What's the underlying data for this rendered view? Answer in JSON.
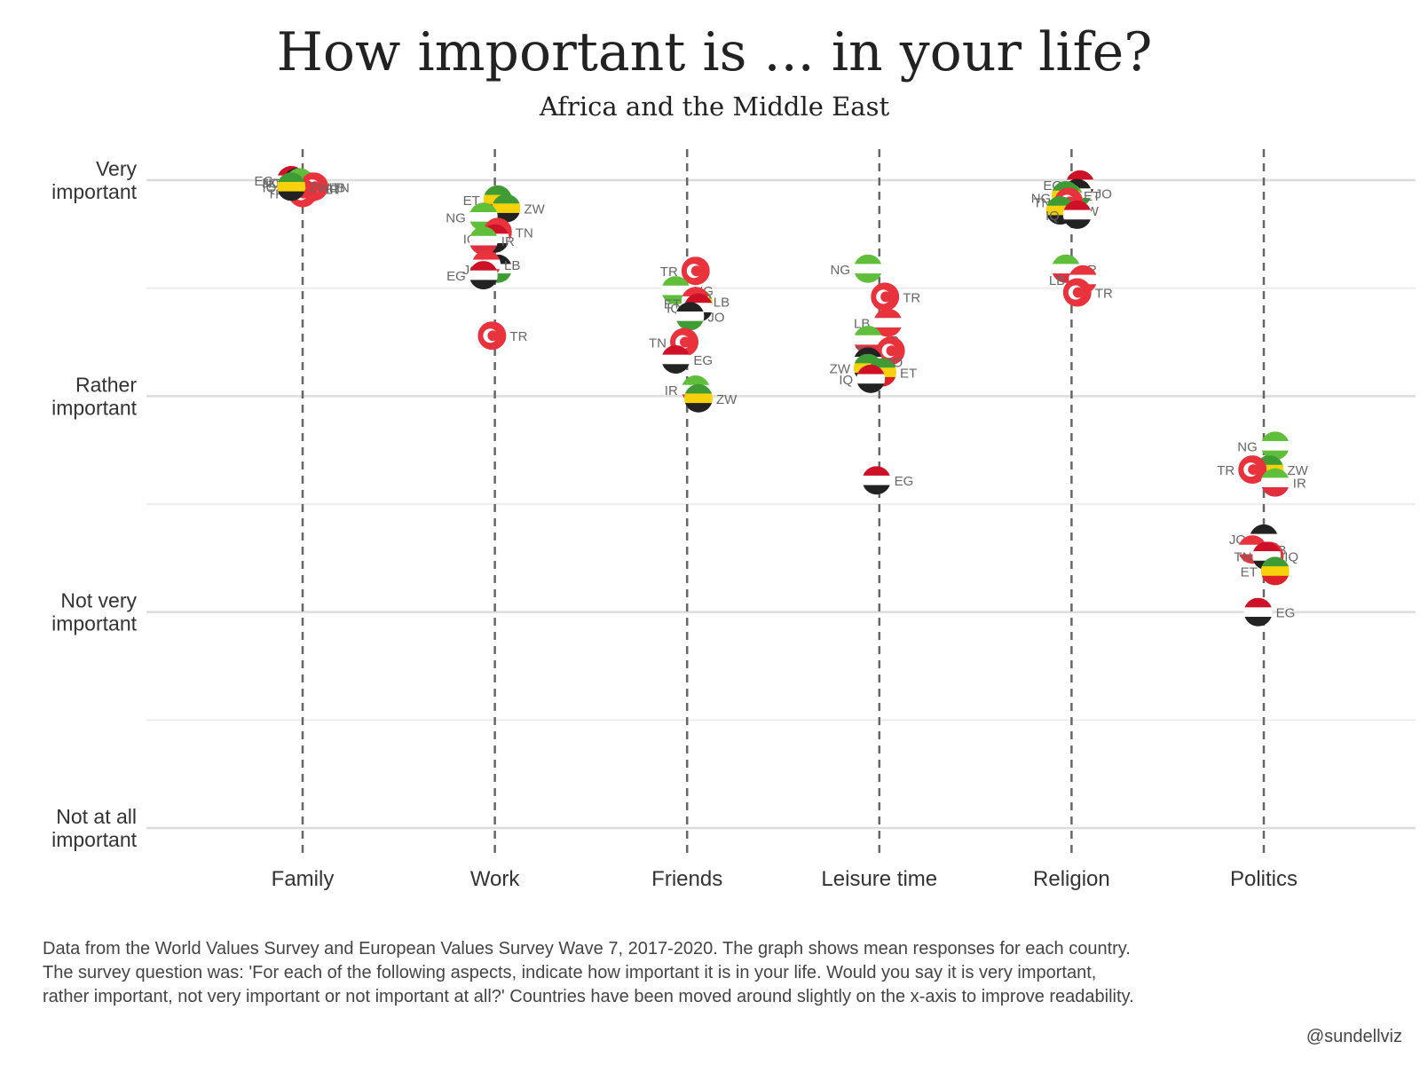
{
  "header": {
    "title": "How important is ... in your life?",
    "subtitle": "Africa and the Middle East"
  },
  "footer": {
    "caption_lines": [
      "Data from the World Values Survey and European Values Survey Wave 7, 2017-2020. The graph shows mean responses for each country.",
      "The survey question was: 'For each of the following aspects, indicate how important it is in your life. Would you say it is very important,",
      "rather important, not very important or not important at all?' Countries have been moved around slightly on the x-axis to improve readability."
    ],
    "credit": "@sundellviz"
  },
  "chart_data": {
    "type": "scatter",
    "title": "How important is ... in your life?",
    "subtitle": "Africa and the Middle East",
    "categories": [
      "Family",
      "Work",
      "Friends",
      "Leisure time",
      "Religion",
      "Politics"
    ],
    "y_ticks": [
      {
        "value": 1,
        "label": "Very important"
      },
      {
        "value": 2,
        "label": "Rather important"
      },
      {
        "value": 3,
        "label": "Not very important"
      },
      {
        "value": 4,
        "label": "Not at all important"
      }
    ],
    "ylim": [
      1,
      4
    ],
    "y_inverted": true,
    "grid": true,
    "country_codes": [
      "EG",
      "ET",
      "IQ",
      "IR",
      "JO",
      "LB",
      "NG",
      "TN",
      "TR",
      "ZW"
    ],
    "country_colors": {
      "EG": [
        "#ce1126",
        "#ffffff",
        "#222222"
      ],
      "ET": [
        "#3f9c35",
        "#f5d20b",
        "#da2128"
      ],
      "IQ": [
        "#ce1126",
        "#ffffff",
        "#222222"
      ],
      "IR": [
        "#5fbf3a",
        "#ffffff",
        "#e03040"
      ],
      "JO": [
        "#222222",
        "#ffffff",
        "#3f9c35"
      ],
      "LB": [
        "#e8333d",
        "#ffffff",
        "#e8333d"
      ],
      "NG": [
        "#5fbf3a",
        "#ffffff",
        "#5fbf3a"
      ],
      "TN": [
        "#e8333d",
        "#e8333d",
        "#e8333d"
      ],
      "TR": [
        "#e8333d",
        "#e8333d",
        "#e8333d"
      ],
      "ZW": [
        "#3f9c35",
        "#f5d20b",
        "#222222"
      ]
    },
    "points": [
      {
        "category": "Family",
        "country": "EG",
        "value": 1.0
      },
      {
        "category": "Family",
        "country": "ET",
        "value": 1.04
      },
      {
        "category": "Family",
        "country": "IQ",
        "value": 1.03
      },
      {
        "category": "Family",
        "country": "IR",
        "value": 1.04
      },
      {
        "category": "Family",
        "country": "JO",
        "value": 1.01
      },
      {
        "category": "Family",
        "country": "LB",
        "value": 1.03
      },
      {
        "category": "Family",
        "country": "NG",
        "value": 1.01
      },
      {
        "category": "Family",
        "country": "TN",
        "value": 1.03
      },
      {
        "category": "Family",
        "country": "TR",
        "value": 1.06
      },
      {
        "category": "Family",
        "country": "ZW",
        "value": 1.03
      },
      {
        "category": "Work",
        "country": "ET",
        "value": 1.09
      },
      {
        "category": "Work",
        "country": "ZW",
        "value": 1.13
      },
      {
        "category": "Work",
        "country": "NG",
        "value": 1.17
      },
      {
        "category": "Work",
        "country": "TN",
        "value": 1.24
      },
      {
        "category": "Work",
        "country": "IQ",
        "value": 1.27
      },
      {
        "category": "Work",
        "country": "IR",
        "value": 1.28
      },
      {
        "category": "Work",
        "country": "JO",
        "value": 1.41
      },
      {
        "category": "Work",
        "country": "LB",
        "value": 1.39
      },
      {
        "category": "Work",
        "country": "EG",
        "value": 1.44
      },
      {
        "category": "Work",
        "country": "TR",
        "value": 1.72
      },
      {
        "category": "Friends",
        "country": "TR",
        "value": 1.42
      },
      {
        "category": "Friends",
        "country": "NG",
        "value": 1.51
      },
      {
        "category": "Friends",
        "country": "ET",
        "value": 1.57
      },
      {
        "category": "Friends",
        "country": "LB",
        "value": 1.56
      },
      {
        "category": "Friends",
        "country": "IQ",
        "value": 1.59
      },
      {
        "category": "Friends",
        "country": "JO",
        "value": 1.63
      },
      {
        "category": "Friends",
        "country": "TN",
        "value": 1.75
      },
      {
        "category": "Friends",
        "country": "EG",
        "value": 1.83
      },
      {
        "category": "Friends",
        "country": "IR",
        "value": 1.97
      },
      {
        "category": "Friends",
        "country": "ZW",
        "value": 2.01
      },
      {
        "category": "Leisure time",
        "country": "NG",
        "value": 1.41
      },
      {
        "category": "Leisure time",
        "country": "TR",
        "value": 1.54
      },
      {
        "category": "Leisure time",
        "country": "LB",
        "value": 1.66
      },
      {
        "category": "Leisure time",
        "country": "IR",
        "value": 1.74
      },
      {
        "category": "Leisure time",
        "country": "TN",
        "value": 1.79
      },
      {
        "category": "Leisure time",
        "country": "JO",
        "value": 1.84
      },
      {
        "category": "Leisure time",
        "country": "ZW",
        "value": 1.87
      },
      {
        "category": "Leisure time",
        "country": "ET",
        "value": 1.89
      },
      {
        "category": "Leisure time",
        "country": "IQ",
        "value": 1.92
      },
      {
        "category": "Leisure time",
        "country": "EG",
        "value": 2.39
      },
      {
        "category": "Religion",
        "country": "EG",
        "value": 1.02
      },
      {
        "category": "Religion",
        "country": "JO",
        "value": 1.06
      },
      {
        "category": "Religion",
        "country": "NG",
        "value": 1.08
      },
      {
        "category": "Religion",
        "country": "ET",
        "value": 1.07
      },
      {
        "category": "Religion",
        "country": "TN",
        "value": 1.1
      },
      {
        "category": "Religion",
        "country": "ZW",
        "value": 1.14
      },
      {
        "category": "Religion",
        "country": "IQ",
        "value": 1.16
      },
      {
        "category": "Religion",
        "country": "IR",
        "value": 1.41
      },
      {
        "category": "Religion",
        "country": "LB",
        "value": 1.46
      },
      {
        "category": "Religion",
        "country": "TR",
        "value": 1.52
      },
      {
        "category": "Politics",
        "country": "NG",
        "value": 2.23
      },
      {
        "category": "Politics",
        "country": "ZW",
        "value": 2.34
      },
      {
        "category": "Politics",
        "country": "TR",
        "value": 2.34
      },
      {
        "category": "Politics",
        "country": "IR",
        "value": 2.4
      },
      {
        "category": "Politics",
        "country": "JO",
        "value": 2.66
      },
      {
        "category": "Politics",
        "country": "LB",
        "value": 2.71
      },
      {
        "category": "Politics",
        "country": "TN",
        "value": 2.74
      },
      {
        "category": "Politics",
        "country": "IQ",
        "value": 2.74
      },
      {
        "category": "Politics",
        "country": "ET",
        "value": 2.81
      },
      {
        "category": "Politics",
        "country": "EG",
        "value": 3.0
      }
    ]
  }
}
